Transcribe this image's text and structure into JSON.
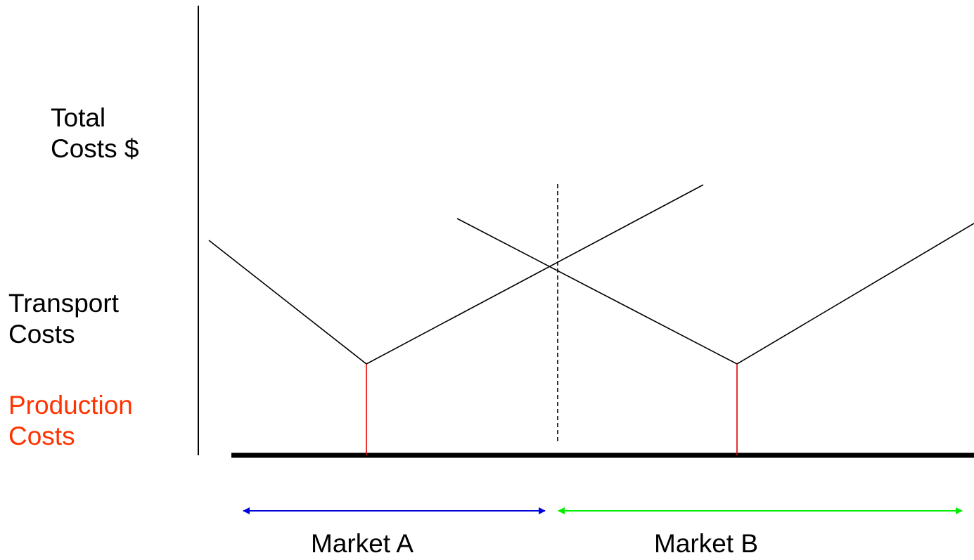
{
  "labels": {
    "total_costs_line1": "Total",
    "total_costs_line2": "Costs $",
    "transport_costs_line1": "Transport",
    "transport_costs_line2": "Costs",
    "production_costs_line1": "Production",
    "production_costs_line2": "Costs",
    "market_a": "Market A",
    "market_b": "Market B"
  },
  "colors": {
    "text": "#000000",
    "production": "#ff3300",
    "production_line": "#dd0000",
    "market_a_arrow": "#0000dd",
    "market_b_arrow": "#00ee00",
    "lines": "#000000"
  }
}
